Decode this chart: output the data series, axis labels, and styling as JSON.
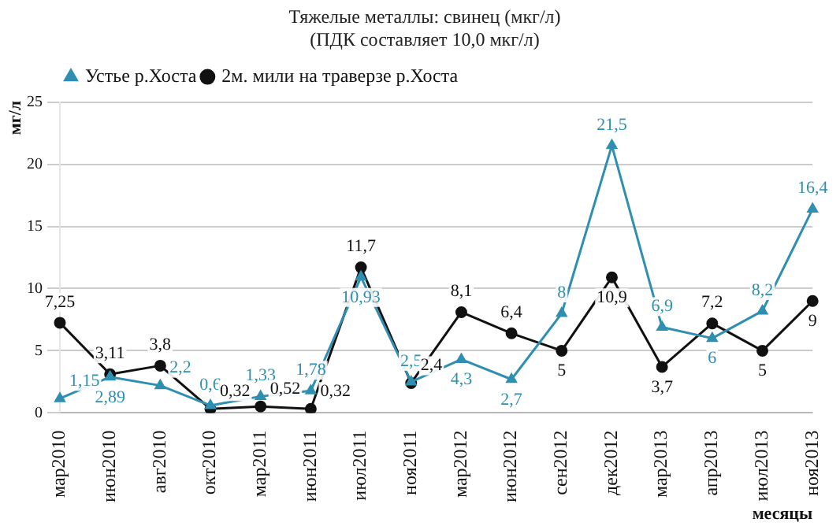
{
  "chart_data": {
    "type": "line",
    "title": "Тяжелые металлы: свинец (мкг/л)",
    "subtitle": "(ПДК составляет 10,0 мкг/л)",
    "xlabel": "месяцы",
    "ylabel": "мг/л",
    "categories": [
      "мар2010",
      "июн2010",
      "авг2010",
      "окт2010",
      "мар2011",
      "июн2011",
      "июл2011",
      "ноя2011",
      "мар2012",
      "июн2012",
      "сен2012",
      "дек2012",
      "мар2013",
      "апр2013",
      "июл2013",
      "ноя2013"
    ],
    "series": [
      {
        "name": "Устье р.Хоста",
        "color": "#2e8fb0",
        "marker": "triangle",
        "values": [
          1.15,
          2.89,
          2.2,
          0.6,
          1.33,
          1.78,
          10.93,
          2.5,
          4.3,
          2.7,
          8,
          21.5,
          6.9,
          6,
          8.2,
          16.4
        ],
        "value_labels": [
          "1,15",
          "2,89",
          "2,2",
          "0,6",
          "1,33",
          "1,78",
          "10,93",
          "2,5",
          "4,3",
          "2,7",
          "8",
          "21,5",
          "6,9",
          "6",
          "8,2",
          "16,4"
        ]
      },
      {
        "name": "2м. мили на траверзе р.Хоста",
        "color": "#111111",
        "marker": "circle",
        "values": [
          7.25,
          3.11,
          3.8,
          0.32,
          0.52,
          0.32,
          11.7,
          2.4,
          8.1,
          6.4,
          5,
          10.9,
          3.7,
          7.2,
          5,
          9
        ],
        "value_labels": [
          "7,25",
          "3,11",
          "3,8",
          "0,32",
          "0,52",
          "0,32",
          "11,7",
          "2,4",
          "8,1",
          "6,4",
          "5",
          "10,9",
          "3,7",
          "7,2",
          "5",
          "9"
        ]
      }
    ],
    "ylim": [
      0,
      25
    ],
    "yticks": [
      0,
      5,
      10,
      15,
      20,
      25
    ],
    "grid": "y",
    "legend": "top left",
    "line_style": "solid"
  }
}
